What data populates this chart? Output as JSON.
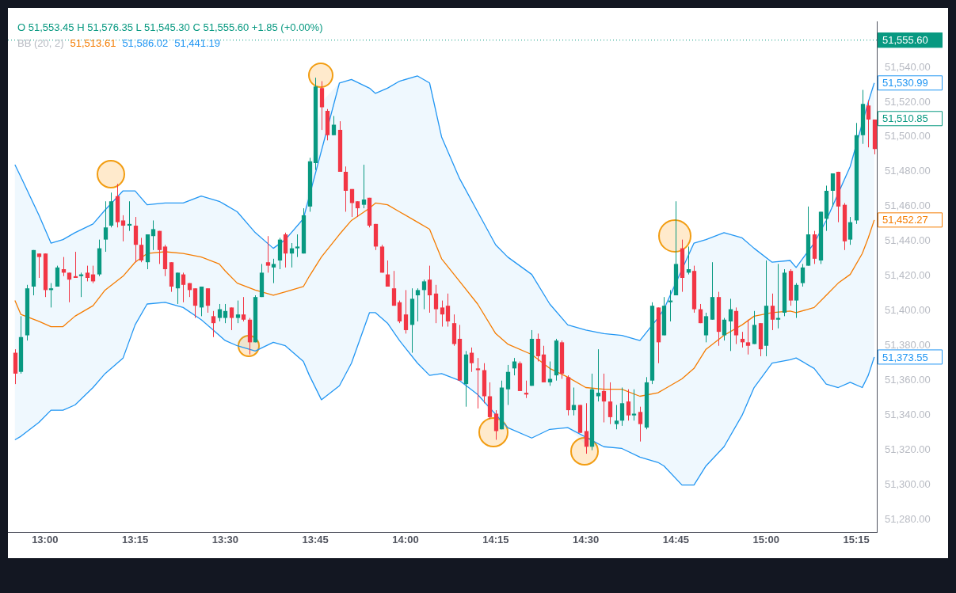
{
  "chart_data": {
    "type": "candlestick",
    "x": [
      12.9167,
      12.9333,
      12.95,
      12.9667,
      12.9833,
      13,
      13.0167,
      13.0333,
      13.05,
      13.0667,
      13.0833,
      13.1,
      13.1167,
      13.1333,
      13.15,
      13.1667,
      13.1833,
      13.2,
      13.2167,
      13.2333,
      13.25,
      13.2667,
      13.2833,
      13.3,
      13.3167,
      13.3333,
      13.35,
      13.3667,
      13.3833,
      13.4,
      13.4167,
      13.4333,
      13.45,
      13.4667,
      13.4833,
      13.5,
      13.5167,
      13.5333,
      13.55,
      13.5667,
      13.5833,
      13.6,
      13.6167,
      13.6333,
      13.65,
      13.6667,
      13.6833,
      13.7,
      13.7167,
      13.7333,
      13.75,
      13.7667,
      13.7833,
      13.8,
      13.8167,
      13.8333,
      13.85,
      13.8667,
      13.8833,
      13.9,
      13.9167,
      13.9333,
      13.95,
      13.9667,
      13.9833,
      14,
      14.0167,
      14.0333,
      14.05,
      14.0667,
      14.0833,
      14.1,
      14.1167,
      14.1333,
      14.15,
      14.1667,
      14.1833,
      14.2,
      14.2167,
      14.2333,
      14.25,
      14.2667,
      14.2833,
      14.3,
      14.3167,
      14.3333,
      14.35,
      14.3667,
      14.3833,
      14.4,
      14.4167,
      14.4333,
      14.45,
      14.4667,
      14.4833,
      14.5,
      14.5167,
      14.5333,
      14.55,
      14.5667,
      14.5833,
      14.6,
      14.6167,
      14.6333,
      14.65,
      14.6667,
      14.6833,
      14.7,
      14.7167,
      14.7333,
      14.75,
      14.7667,
      14.7833,
      14.8,
      14.8167,
      14.8333,
      14.85,
      14.8667,
      14.8833,
      14.9,
      14.9167,
      14.9333,
      14.95,
      14.9667,
      14.9833,
      15,
      15.0167,
      15.0333,
      15.05,
      15.0667,
      15.0833,
      15.1,
      15.1167,
      15.1333,
      15.15,
      15.1667,
      15.1833,
      15.2,
      15.2167,
      15.2333,
      15.25,
      15.2667,
      15.2833,
      15.3
    ],
    "ohlc": [
      [
        51376,
        51378,
        51358,
        51364
      ],
      [
        51365,
        51397,
        51364,
        51385
      ],
      [
        51386,
        51415,
        51383,
        51413
      ],
      [
        51414,
        51435,
        51409,
        51435
      ],
      [
        51433,
        51433,
        51419,
        51431
      ],
      [
        51433,
        51433,
        51408,
        51412
      ],
      [
        51412,
        51416,
        51402,
        51413
      ],
      [
        51414,
        51426,
        51414,
        51425
      ],
      [
        51424,
        51431,
        51420,
        51422
      ],
      [
        51422,
        51422,
        51405,
        51418
      ],
      [
        51420,
        51434,
        51419,
        51419
      ],
      [
        51420,
        51422,
        51408,
        51421
      ],
      [
        51422,
        51426,
        51417,
        51419
      ],
      [
        51421,
        51426,
        51416,
        51417
      ],
      [
        51421,
        51441,
        51420,
        51436
      ],
      [
        51441,
        51463,
        51434,
        51448
      ],
      [
        51449,
        51468,
        51448,
        51463
      ],
      [
        51466,
        51473,
        51448,
        51451
      ],
      [
        51452,
        51455,
        51440,
        51449
      ],
      [
        51449,
        51463,
        51446,
        51450
      ],
      [
        51449,
        51454,
        51428,
        51438
      ],
      [
        51438,
        51442,
        51428,
        51429
      ],
      [
        51428,
        51444,
        51424,
        51444
      ],
      [
        51443,
        51452,
        51435,
        51447
      ],
      [
        51446,
        51446,
        51427,
        51435
      ],
      [
        51437,
        51438,
        51420,
        51424
      ],
      [
        51428,
        51428,
        51411,
        51414
      ],
      [
        51413,
        51422,
        51404,
        51422
      ],
      [
        51421,
        51422,
        51405,
        51415
      ],
      [
        51416,
        51416,
        51408,
        51412
      ],
      [
        51413,
        51413,
        51396,
        51403
      ],
      [
        51402,
        51414,
        51397,
        51414
      ],
      [
        51413,
        51413,
        51399,
        51403
      ],
      [
        51397,
        51400,
        51385,
        51393
      ],
      [
        51396,
        51404,
        51394,
        51401
      ],
      [
        51396,
        51404,
        51393,
        51400
      ],
      [
        51402,
        51402,
        51389,
        51396
      ],
      [
        51396,
        51406,
        51393,
        51398
      ],
      [
        51398,
        51408,
        51394,
        51395
      ],
      [
        51395,
        51396,
        51375,
        51382
      ],
      [
        51382,
        51409,
        51382,
        51408
      ],
      [
        51408,
        51427,
        51408,
        51422
      ],
      [
        51428,
        51443,
        51422,
        51426
      ],
      [
        51425,
        51430,
        51416,
        51427
      ],
      [
        51429,
        51442,
        51424,
        51441
      ],
      [
        51444,
        51445,
        51425,
        51433
      ],
      [
        51433,
        51439,
        51425,
        51436
      ],
      [
        51436,
        51444,
        51431,
        51437
      ],
      [
        51433,
        51459,
        51433,
        51455
      ],
      [
        51460,
        51488,
        51457,
        51486
      ],
      [
        51485,
        51534,
        51481,
        51529
      ],
      [
        51528,
        51532,
        51504,
        51517
      ],
      [
        51515,
        51516,
        51498,
        51501
      ],
      [
        51501,
        51512,
        51501,
        51507
      ],
      [
        51504,
        51509,
        51480,
        51480
      ],
      [
        51480,
        51483,
        51457,
        51469
      ],
      [
        51470,
        51470,
        51454,
        51462
      ],
      [
        51463,
        51463,
        51454,
        51459
      ],
      [
        51461,
        51484,
        51459,
        51464
      ],
      [
        51465,
        51465,
        51448,
        51449
      ],
      [
        51450,
        51450,
        51435,
        51437
      ],
      [
        51437,
        51438,
        51422,
        51422
      ],
      [
        51421,
        51429,
        51414,
        51414
      ],
      [
        51413,
        51423,
        51403,
        51403
      ],
      [
        51405,
        51406,
        51393,
        51394
      ],
      [
        51398,
        51412,
        51387,
        51389
      ],
      [
        51392,
        51413,
        51376,
        51407
      ],
      [
        51409,
        51413,
        51394,
        51412
      ],
      [
        51412,
        51418,
        51401,
        51417
      ],
      [
        51418,
        51426,
        51399,
        51409
      ],
      [
        51410,
        51415,
        51393,
        51401
      ],
      [
        51402,
        51406,
        51391,
        51398
      ],
      [
        51403,
        51410,
        51391,
        51394
      ],
      [
        51393,
        51398,
        51380,
        51381
      ],
      [
        51384,
        51392,
        51360,
        51360
      ],
      [
        51358,
        51377,
        51345,
        51375
      ],
      [
        51376,
        51379,
        51365,
        51370
      ],
      [
        51367,
        51373,
        51344,
        51366
      ],
      [
        51366,
        51370,
        51347,
        51351
      ],
      [
        51351,
        51359,
        51338,
        51339
      ],
      [
        51341,
        51343,
        51326,
        51331
      ],
      [
        51332,
        51360,
        51332,
        51356
      ],
      [
        51355,
        51369,
        51346,
        51365
      ],
      [
        51367,
        51373,
        51363,
        51371
      ],
      [
        51370,
        51371,
        51354,
        51354
      ],
      [
        51353,
        51360,
        51350,
        51352
      ],
      [
        51357,
        51389,
        51357,
        51384
      ],
      [
        51384,
        51387,
        51371,
        51374
      ],
      [
        51375,
        51380,
        51359,
        51359
      ],
      [
        51359,
        51371,
        51357,
        51361
      ],
      [
        51363,
        51384,
        51360,
        51383
      ],
      [
        51382,
        51383,
        51361,
        51364
      ],
      [
        51362,
        51363,
        51340,
        51343
      ],
      [
        51343,
        51356,
        51340,
        51346
      ],
      [
        51346,
        51346,
        51330,
        51330
      ],
      [
        51331,
        51347,
        51318,
        51322
      ],
      [
        51322,
        51364,
        51320,
        51355
      ],
      [
        51351,
        51378,
        51348,
        51353
      ],
      [
        51354,
        51364,
        51336,
        51348
      ],
      [
        51348,
        51359,
        51335,
        51339
      ],
      [
        51335,
        51346,
        51332,
        51337
      ],
      [
        51337,
        51356,
        51334,
        51347
      ],
      [
        51348,
        51355,
        51337,
        51340
      ],
      [
        51340,
        51355,
        51337,
        51341
      ],
      [
        51342,
        51345,
        51325,
        51335
      ],
      [
        51333,
        51362,
        51332,
        51359
      ],
      [
        51360,
        51405,
        51358,
        51403
      ],
      [
        51402,
        51402,
        51370,
        51382
      ],
      [
        51386,
        51408,
        51386,
        51403
      ],
      [
        51405,
        51412,
        51394,
        51406
      ],
      [
        51409,
        51463,
        51409,
        51427
      ],
      [
        51436,
        51441,
        51411,
        51419
      ],
      [
        51422,
        51437,
        51421,
        51424
      ],
      [
        51423,
        51426,
        51399,
        51401
      ],
      [
        51401,
        51404,
        51393,
        51393
      ],
      [
        51386,
        51399,
        51382,
        51397
      ],
      [
        51395,
        51428,
        51395,
        51408
      ],
      [
        51408,
        51411,
        51380,
        51388
      ],
      [
        51386,
        51396,
        51383,
        51395
      ],
      [
        51394,
        51407,
        51377,
        51401
      ],
      [
        51400,
        51402,
        51381,
        51386
      ],
      [
        51384,
        51388,
        51379,
        51382
      ],
      [
        51382,
        51395,
        51375,
        51380
      ],
      [
        51381,
        51400,
        51381,
        51392
      ],
      [
        51393,
        51393,
        51374,
        51378
      ],
      [
        51380,
        51429,
        51374,
        51403
      ],
      [
        51403,
        51410,
        51389,
        51395
      ],
      [
        51395,
        51427,
        51390,
        51396
      ],
      [
        51399,
        51424,
        51397,
        51422
      ],
      [
        51423,
        51424,
        51403,
        51406
      ],
      [
        51406,
        51416,
        51396,
        51415
      ],
      [
        51416,
        51427,
        51414,
        51425
      ],
      [
        51426,
        51460,
        51426,
        51444
      ],
      [
        51444,
        51446,
        51427,
        51430
      ],
      [
        51429,
        51457,
        51427,
        51457
      ],
      [
        51453,
        51472,
        51446,
        51469
      ],
      [
        51469,
        51479,
        51460,
        51479
      ],
      [
        51480,
        51480,
        51451,
        51460
      ],
      [
        51461,
        51462,
        51435,
        51440
      ],
      [
        51441,
        51454,
        51438,
        51451
      ],
      [
        51452,
        51508,
        51450,
        51501
      ],
      [
        51501,
        51527,
        51496,
        51519
      ],
      [
        51518,
        51521,
        51494,
        51510
      ],
      [
        51510,
        51510,
        51490,
        51493
      ]
    ],
    "colors": [
      "#f23645",
      "#089981",
      "#089981",
      "#089981",
      "#f23645",
      "#f23645",
      "#089981",
      "#089981",
      "#f23645",
      "#f23645",
      "#f23645",
      "#089981",
      "#f23645",
      "#f23645",
      "#089981",
      "#089981",
      "#089981",
      "#f23645",
      "#f23645",
      "#089981",
      "#f23645",
      "#f23645",
      "#089981",
      "#089981",
      "#f23645",
      "#f23645",
      "#f23645",
      "#089981",
      "#f23645",
      "#f23645",
      "#f23645",
      "#089981",
      "#f23645",
      "#f23645",
      "#089981",
      "#089981",
      "#f23645",
      "#089981",
      "#f23645",
      "#f23645",
      "#089981",
      "#089981",
      "#f23645",
      "#089981",
      "#089981",
      "#f23645",
      "#089981",
      "#089981",
      "#089981",
      "#089981",
      "#089981",
      "#f23645",
      "#f23645",
      "#089981",
      "#f23645",
      "#f23645",
      "#f23645",
      "#f23645",
      "#089981",
      "#f23645",
      "#f23645",
      "#f23645",
      "#f23645",
      "#f23645",
      "#f23645",
      "#f23645",
      "#089981",
      "#089981",
      "#089981",
      "#f23645",
      "#f23645",
      "#f23645",
      "#f23645",
      "#f23645",
      "#f23645",
      "#089981",
      "#f23645",
      "#f23645",
      "#f23645",
      "#f23645",
      "#f23645",
      "#089981",
      "#089981",
      "#089981",
      "#f23645",
      "#f23645",
      "#089981",
      "#f23645",
      "#f23645",
      "#089981",
      "#089981",
      "#f23645",
      "#f23645",
      "#089981",
      "#f23645",
      "#f23645",
      "#089981",
      "#089981",
      "#f23645",
      "#f23645",
      "#089981",
      "#089981",
      "#f23645",
      "#089981",
      "#f23645",
      "#089981",
      "#089981",
      "#f23645",
      "#089981",
      "#089981",
      "#089981",
      "#f23645",
      "#089981",
      "#f23645",
      "#f23645",
      "#089981",
      "#089981",
      "#f23645",
      "#089981",
      "#089981",
      "#f23645",
      "#f23645",
      "#f23645",
      "#089981",
      "#f23645",
      "#089981",
      "#f23645",
      "#089981",
      "#089981",
      "#f23645",
      "#089981",
      "#089981",
      "#089981",
      "#f23645",
      "#089981",
      "#089981",
      "#089981",
      "#f23645",
      "#f23645",
      "#089981",
      "#089981",
      "#089981",
      "#f23645",
      "#f23645"
    ],
    "series": [
      {
        "type": "line",
        "color": "#f57c00",
        "x": [
          12.9167,
          12.9333,
          12.9833,
          13.0167,
          13.05,
          13.0833,
          13.1333,
          13.1667,
          13.2167,
          13.25,
          13.2833,
          13.3333,
          13.3833,
          13.4333,
          13.4833,
          13.5,
          13.5333,
          13.5833,
          13.6333,
          13.6667,
          13.7167,
          13.7333,
          13.7667,
          13.8167,
          13.85,
          13.9,
          13.9167,
          13.95,
          13.9833,
          14.0333,
          14.0667,
          14.1,
          14.15,
          14.2,
          14.25,
          14.2833,
          14.35,
          14.4,
          14.45,
          14.5,
          14.55,
          14.6,
          14.65,
          14.7,
          14.7167,
          14.7667,
          14.8,
          14.8333,
          14.8833,
          14.9333,
          14.9667,
          15.0167,
          15.0667,
          15.0833,
          15.1333,
          15.1667,
          15.2,
          15.2333,
          15.2667,
          15.2833,
          15.3
        ],
        "values": [
          51406,
          51398,
          51394,
          51391,
          51391,
          51397,
          51403,
          51412,
          51420,
          51428,
          51433,
          51434,
          51433,
          51431,
          51427,
          51423,
          51416,
          51412,
          51409,
          51411,
          51414,
          51420,
          51431,
          51444,
          51452,
          51459,
          51462,
          51461,
          51457,
          51451,
          51447,
          51430,
          51417,
          51404,
          51387,
          51381,
          51375,
          51367,
          51362,
          51356,
          51355,
          51355,
          51351,
          51353,
          51355,
          51361,
          51367,
          51378,
          51386,
          51392,
          51397,
          51399,
          51400,
          51399,
          51402,
          51409,
          51416,
          51421,
          51433,
          51442,
          51452.27
        ],
        "value_labels": [
          null,
          null,
          null,
          null,
          null,
          null,
          null,
          null,
          null,
          null,
          null,
          null,
          null,
          null,
          null,
          null,
          null,
          null,
          null,
          null,
          null,
          null,
          null,
          null,
          null,
          null,
          null,
          null,
          null,
          null,
          null,
          null,
          null,
          null,
          null,
          null,
          null,
          null,
          null,
          null,
          null,
          null,
          null,
          null,
          null,
          null,
          null,
          null,
          null,
          null,
          null,
          null,
          null,
          null,
          null,
          null,
          null,
          null,
          null,
          null,
          "51,452.27"
        ],
        "upper": [
          51484,
          51477,
          51455,
          51439,
          51441,
          51445,
          51450,
          51458,
          51469,
          51469,
          51461,
          51462,
          51462,
          51466,
          51463,
          51461,
          51457,
          51445,
          51436,
          51441,
          51453,
          51477,
          51520,
          51531,
          51533,
          51528,
          51525,
          51528,
          51532,
          51535,
          51531,
          51500,
          51476,
          51457,
          51438,
          51431,
          51421,
          51404,
          51392,
          51389,
          51387,
          51386,
          51383,
          51396,
          51401,
          51430,
          51439,
          51441,
          51445,
          51442,
          51436,
          51428,
          51429,
          51425,
          51439,
          51452,
          51470,
          51483,
          51511,
          51520,
          51530.99
        ],
        "lower": [
          51326,
          51328,
          51336,
          51343,
          51343,
          51346,
          51356,
          51364,
          51373,
          51392,
          51404,
          51405,
          51402,
          51395,
          51386,
          51383,
          51380,
          51377,
          51382,
          51380,
          51371,
          51363,
          51349,
          51357,
          51370,
          51399,
          51399,
          51393,
          51383,
          51370,
          51363,
          51364,
          51360,
          51352,
          51338,
          51333,
          51327,
          51332,
          51333,
          51323,
          51322,
          51321,
          51316,
          51313,
          51311,
          51300,
          51300,
          51311,
          51322,
          51340,
          51356,
          51370,
          51372,
          51373,
          51367,
          51358,
          51356,
          51359,
          51356,
          51363,
          51373.55
        ]
      },
      {
        "type": "line",
        "color": "#2196f3",
        "x": [
          12.9167,
          12.9333,
          12.9833,
          13.0167,
          13.05,
          13.0833,
          13.1333,
          13.1667,
          13.2167,
          13.25,
          13.2833,
          13.3333,
          13.3833,
          13.4333,
          13.4833,
          13.5,
          13.5333,
          13.5833,
          13.6333,
          13.6667,
          13.7167,
          13.7333,
          13.7667,
          13.8167,
          13.85,
          13.9,
          13.9167,
          13.95,
          13.9833,
          14.0333,
          14.0667,
          14.1,
          14.15,
          14.2,
          14.25,
          14.2833,
          14.35,
          14.4,
          14.45,
          14.5,
          14.55,
          14.6,
          14.65,
          14.7,
          14.7167,
          14.7667,
          14.8,
          14.8333,
          14.8833,
          14.9333,
          14.9667,
          15.0167,
          15.0667,
          15.0833,
          15.1333,
          15.1667,
          15.2,
          15.2333,
          15.2667,
          15.2833,
          15.3
        ],
        "values": [
          51484,
          51477,
          51455,
          51439,
          51441,
          51445,
          51450,
          51458,
          51469,
          51469,
          51461,
          51462,
          51462,
          51466,
          51463,
          51461,
          51457,
          51445,
          51436,
          51441,
          51453,
          null,
          null,
          51531,
          51533,
          51528,
          51525,
          51528,
          51532,
          51535,
          51531,
          51500,
          51476,
          51457,
          51438,
          51431,
          51421,
          51404,
          51392,
          51389,
          51387,
          51386,
          51383,
          51396,
          51401,
          null,
          51439,
          51441,
          51445,
          51442,
          51436,
          51428,
          51429,
          51425,
          51439,
          51452,
          null,
          51483,
          null,
          51520,
          51530.99
        ],
        "value_labels": [
          null,
          null,
          null,
          null,
          null,
          null,
          null,
          null,
          null,
          null,
          null,
          null,
          null,
          null,
          null,
          null,
          null,
          null,
          null,
          null,
          null,
          null,
          null,
          null,
          null,
          null,
          null,
          null,
          null,
          null,
          null,
          null,
          null,
          null,
          null,
          null,
          null,
          null,
          null,
          null,
          null,
          null,
          null,
          null,
          null,
          null,
          null,
          null,
          null,
          null,
          null,
          null,
          null,
          null,
          null,
          null,
          null,
          null,
          null,
          null,
          "51,530.99"
        ]
      },
      {
        "type": "line",
        "color": "#2196f3",
        "x": [
          12.9167,
          12.9333,
          12.9833,
          13.0167,
          13.05,
          13.0833,
          13.1333,
          13.1667,
          13.2167,
          13.25,
          13.2833,
          13.3333,
          13.3833,
          13.4333,
          13.4833,
          13.5,
          13.5333,
          13.5833,
          13.6333,
          13.6667,
          13.7167,
          13.7333,
          13.7667,
          13.8167,
          13.85,
          13.9,
          13.9167,
          13.95,
          13.9833,
          14.0333,
          14.0667,
          14.1,
          14.15,
          14.2,
          14.25,
          14.2833,
          14.35,
          14.4,
          14.45,
          14.5,
          14.55,
          14.6,
          14.65,
          14.7,
          14.7167,
          14.7667,
          14.8,
          14.8333,
          14.8833,
          14.9333,
          14.9667,
          15.0167,
          15.0667,
          15.0833,
          15.1333,
          15.1667,
          15.2,
          15.2333,
          15.2667,
          15.2833,
          15.3
        ],
        "values": [
          51326,
          51328,
          51336,
          51343,
          51343,
          51346,
          51356,
          51364,
          51373,
          51392,
          51404,
          51405,
          51402,
          51395,
          51386,
          51383,
          51380,
          51377,
          51382,
          51380,
          51371,
          51363,
          51349,
          51357,
          51370,
          51399,
          51399,
          51393,
          51383,
          51370,
          51363,
          51364,
          51360,
          51352,
          null,
          51333,
          51327,
          51332,
          51333,
          null,
          51322,
          51321,
          51316,
          51313,
          51311,
          51300,
          51300,
          51311,
          51322,
          51340,
          51356,
          51370,
          51372,
          51373,
          51367,
          51358,
          51356,
          51359,
          51356,
          51363,
          51373.55
        ],
        "value_labels": [
          null,
          null,
          null,
          null,
          null,
          null,
          null,
          null,
          null,
          null,
          null,
          null,
          null,
          null,
          null,
          null,
          null,
          null,
          null,
          null,
          null,
          null,
          null,
          null,
          null,
          null,
          null,
          null,
          null,
          null,
          null,
          null,
          null,
          null,
          null,
          null,
          null,
          null,
          null,
          null,
          null,
          null,
          null,
          null,
          null,
          null,
          null,
          null,
          null,
          null,
          null,
          null,
          null,
          null,
          null,
          null,
          null,
          null,
          null,
          null,
          "51,373.55"
        ]
      }
    ],
    "xlim": [
      12.8973,
      15.307
    ],
    "xticks": [
      {
        "value": 13,
        "label": "13:00"
      },
      {
        "value": 13.25,
        "label": "13:15"
      },
      {
        "value": 13.5,
        "label": "13:30"
      },
      {
        "value": 13.75,
        "label": "13:45"
      },
      {
        "value": 14,
        "label": "14:00"
      },
      {
        "value": 14.25,
        "label": "14:15"
      },
      {
        "value": 14.5,
        "label": "14:30"
      },
      {
        "value": 14.75,
        "label": "14:45"
      },
      {
        "value": 15,
        "label": "15:00"
      },
      {
        "value": 15.25,
        "label": "15:15"
      }
    ],
    "ylim": [
      51273,
      51566
    ],
    "yticks": [
      {
        "value": 51280,
        "label": "51,280.00"
      },
      {
        "value": 51300,
        "label": "51,300.00"
      },
      {
        "value": 51320,
        "label": "51,320.00"
      },
      {
        "value": 51340,
        "label": "51,340.00"
      },
      {
        "value": 51360,
        "label": "51,360.00"
      },
      {
        "value": 51380,
        "label": "51,380.00"
      },
      {
        "value": 51400,
        "label": "51,400.00"
      },
      {
        "value": 51420,
        "label": "51,420.00"
      },
      {
        "value": 51440,
        "label": "51,440.00"
      },
      {
        "value": 51460,
        "label": "51,460.00"
      },
      {
        "value": 51480,
        "label": "51,480.00"
      },
      {
        "value": 51500,
        "label": "51,500.00"
      },
      {
        "value": 51520,
        "label": "51,520.00"
      },
      {
        "value": 51540,
        "label": "51,540.00"
      }
    ],
    "ref_lines": [
      {
        "axis": "y",
        "value": 51555.6,
        "label": "51,555.60",
        "color": "#089981",
        "line_style": "dotted"
      }
    ],
    "annotations": [
      "O 51,553.45  H 51,576.35  L 51,545.30  C 51,555.60  +1.85 (+0.00%)",
      "BB (20, 2)",
      "51,513.61",
      "51,586.02",
      "51,441.19",
      "51,510.85"
    ]
  }
}
